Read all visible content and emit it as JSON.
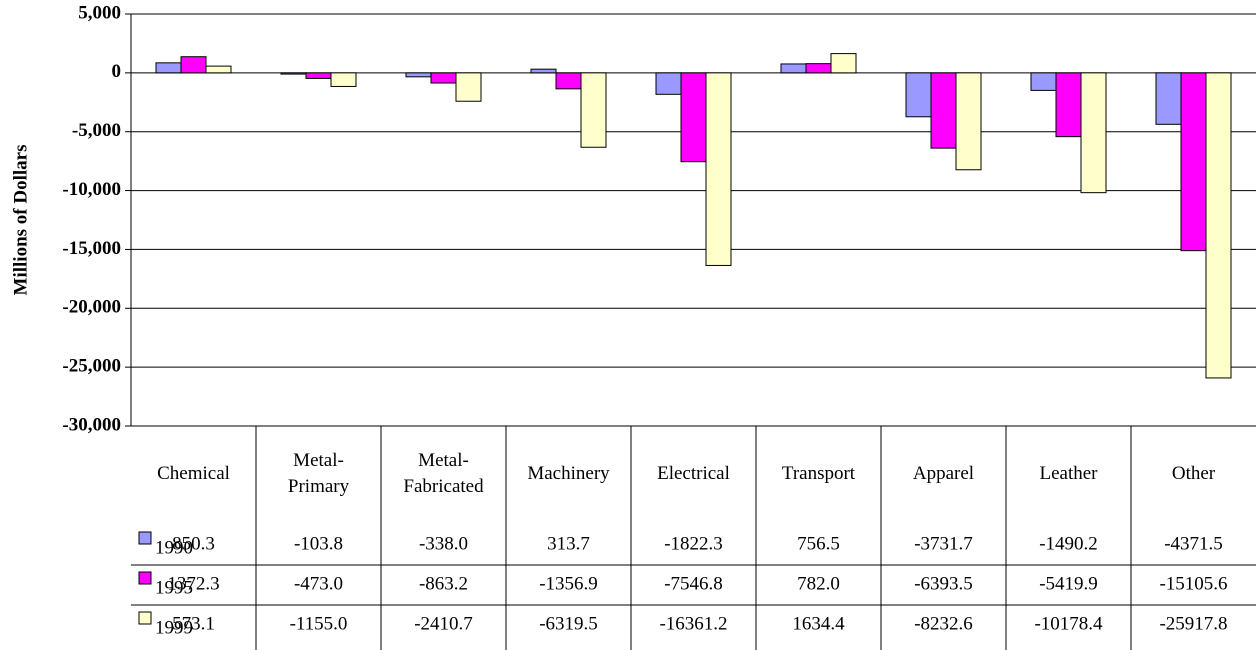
{
  "chart_data": {
    "type": "bar",
    "y_label": "Millions of Dollars",
    "categories": [
      "Chemical",
      "Metal-\nPrimary",
      "Metal-\nFabricated",
      "Machinery",
      "Electrical",
      "Transport",
      "Apparel",
      "Leather",
      "Other"
    ],
    "series": [
      {
        "name": "1990",
        "color": "#9999ff",
        "values": [
          850.3,
          -103.8,
          -338,
          313.7,
          -1822.3,
          756.5,
          -3731.7,
          -1490.2,
          -4371.5
        ],
        "value_labels": [
          "850.3",
          "-103.8",
          "-338.0",
          "313.7",
          "-1822.3",
          "756.5",
          "-3731.7",
          "-1490.2",
          "-4371.5"
        ]
      },
      {
        "name": "1995",
        "color": "#ff00ff",
        "values": [
          1372.3,
          -473,
          -863.2,
          -1356.9,
          -7546.8,
          782,
          -6393.5,
          -5419.9,
          -15105.6
        ],
        "value_labels": [
          "1372.3",
          "-473.0",
          "-863.2",
          "-1356.9",
          "-7546.8",
          "782.0",
          "-6393.5",
          "-5419.9",
          "-15105.6"
        ]
      },
      {
        "name": "1999",
        "color": "#ffffcc",
        "values": [
          573.1,
          -1155,
          -2410.7,
          -6319.5,
          -16361.2,
          1634.4,
          -8232.6,
          -10178.4,
          -25917.8
        ],
        "value_labels": [
          "573.1",
          "-1155.0",
          "-2410.7",
          "-6319.5",
          "-16361.2",
          "1634.4",
          "-8232.6",
          "-10178.4",
          "-25917.8"
        ]
      }
    ],
    "ylim": [
      -30000,
      5000
    ],
    "yticks": [
      {
        "value": -30000,
        "label": "-30,000"
      },
      {
        "value": -25000,
        "label": "-25,000"
      },
      {
        "value": -20000,
        "label": "-20,000"
      },
      {
        "value": -15000,
        "label": "-15,000"
      },
      {
        "value": -10000,
        "label": "-10,000"
      },
      {
        "value": -5000,
        "label": "-5,000"
      },
      0,
      {
        "value": 5000,
        "label": "5,000"
      }
    ],
    "grid": true
  }
}
